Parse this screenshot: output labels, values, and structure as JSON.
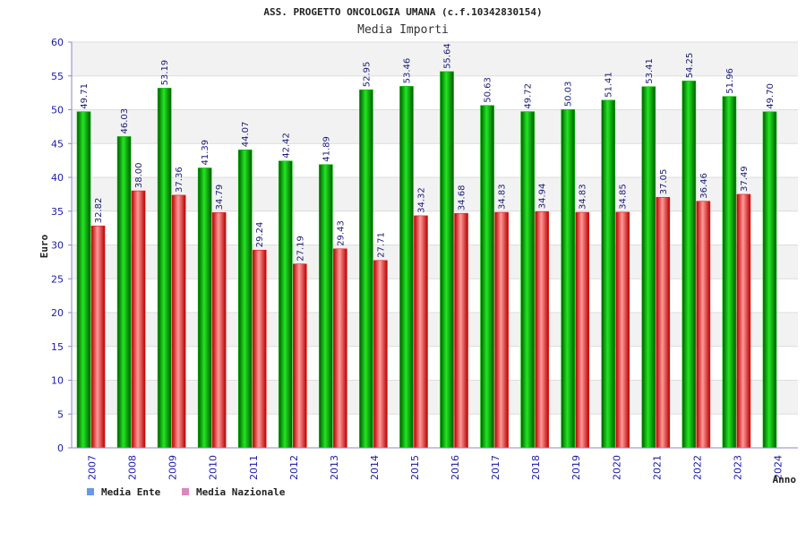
{
  "colors": {
    "series_1": "#00c000",
    "series_2": "#e81818",
    "legend_1": "#6699ee",
    "legend_2": "#dd88bb",
    "band": "#f2f2f2",
    "grid": "#dddddd",
    "axis": "#8888cc",
    "tick_text": "#1a1aa8"
  },
  "chart_data": {
    "type": "bar",
    "title": "ASS. PROGETTO ONCOLOGIA UMANA (c.f.10342830154)",
    "subtitle": "Media Importi",
    "xlabel": "Anno",
    "ylabel": "Euro",
    "ylim": [
      0,
      60
    ],
    "yticks": [
      0,
      5,
      10,
      15,
      20,
      25,
      30,
      35,
      40,
      45,
      50,
      55,
      60
    ],
    "grid": true,
    "legend_position": "bottom-left",
    "categories": [
      "2007",
      "2008",
      "2009",
      "2010",
      "2011",
      "2012",
      "2013",
      "2014",
      "2015",
      "2016",
      "2017",
      "2018",
      "2019",
      "2020",
      "2021",
      "2022",
      "2023",
      "2024"
    ],
    "series": [
      {
        "name": "Media Ente",
        "values": [
          49.71,
          46.03,
          53.19,
          41.39,
          44.07,
          42.42,
          41.89,
          52.95,
          53.46,
          55.64,
          50.63,
          49.72,
          50.03,
          51.41,
          53.41,
          54.25,
          51.96,
          49.7
        ],
        "labels": [
          "49.71",
          "46.03",
          "53.19",
          "41.39",
          "44.07",
          "42.42",
          "41.89",
          "52.95",
          "53.46",
          "55.64",
          "50.63",
          "49.72",
          "50.03",
          "51.41",
          "53.41",
          "54.25",
          "51.96",
          "49.70"
        ]
      },
      {
        "name": "Media Nazionale",
        "values": [
          32.82,
          38.0,
          37.36,
          34.79,
          29.24,
          27.19,
          29.43,
          27.71,
          34.32,
          34.68,
          34.83,
          34.94,
          34.83,
          34.85,
          37.05,
          36.46,
          37.49,
          null
        ],
        "labels": [
          "32.82",
          "38.00",
          "37.36",
          "34.79",
          "29.24",
          "27.19",
          "29.43",
          "27.71",
          "34.32",
          "34.68",
          "34.83",
          "34.94",
          "34.83",
          "34.85",
          "37.05",
          "36.46",
          "37.49",
          null
        ]
      }
    ]
  }
}
